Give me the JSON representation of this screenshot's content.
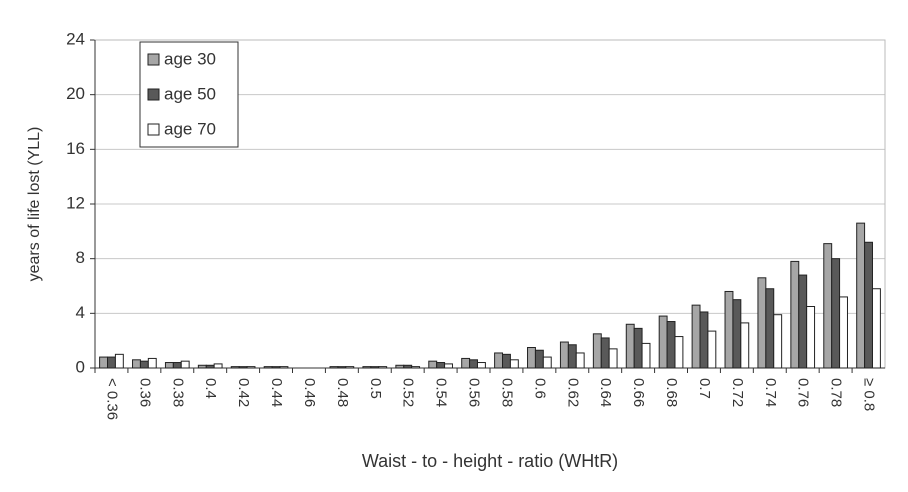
{
  "chart_data": {
    "type": "bar",
    "x_label": "Waist - to - height - ratio (WHtR)",
    "y_label": "years of life lost (YLL)",
    "categories": [
      "< 0.36",
      "0.36",
      "0.38",
      "0.4",
      "0.42",
      "0.44",
      "0.46",
      "0.48",
      "0.5",
      "0.52",
      "0.54",
      "0.56",
      "0.58",
      "0.6",
      "0.62",
      "0.64",
      "0.66",
      "0.68",
      "0.7",
      "0.72",
      "0.74",
      "0.76",
      "0.78",
      "≥ 0.8"
    ],
    "series": [
      {
        "name": "age 30",
        "color": "#a6a6a6",
        "values": [
          0.8,
          0.6,
          0.4,
          0.2,
          0.1,
          0.1,
          0,
          0.1,
          0.1,
          0.2,
          0.5,
          0.7,
          1.1,
          1.5,
          1.9,
          2.5,
          3.2,
          3.8,
          4.6,
          5.6,
          6.6,
          7.8,
          9.1,
          10.6
        ]
      },
      {
        "name": "age 50",
        "color": "#595959",
        "values": [
          0.8,
          0.5,
          0.4,
          0.2,
          0.1,
          0.1,
          0,
          0.1,
          0.1,
          0.2,
          0.4,
          0.6,
          1.0,
          1.3,
          1.7,
          2.2,
          2.9,
          3.4,
          4.1,
          5.0,
          5.8,
          6.8,
          8.0,
          9.2
        ]
      },
      {
        "name": "age 70",
        "color": "#ffffff",
        "values": [
          1.0,
          0.7,
          0.5,
          0.3,
          0.1,
          0.1,
          0,
          0.1,
          0.1,
          0.1,
          0.3,
          0.4,
          0.6,
          0.8,
          1.1,
          1.4,
          1.8,
          2.3,
          2.7,
          3.3,
          3.9,
          4.5,
          5.2,
          5.8
        ]
      }
    ],
    "ylim": [
      0,
      24
    ],
    "yticks": [
      0,
      4,
      8,
      12,
      16,
      20,
      24
    ],
    "grid": true,
    "legend": "top-left"
  }
}
